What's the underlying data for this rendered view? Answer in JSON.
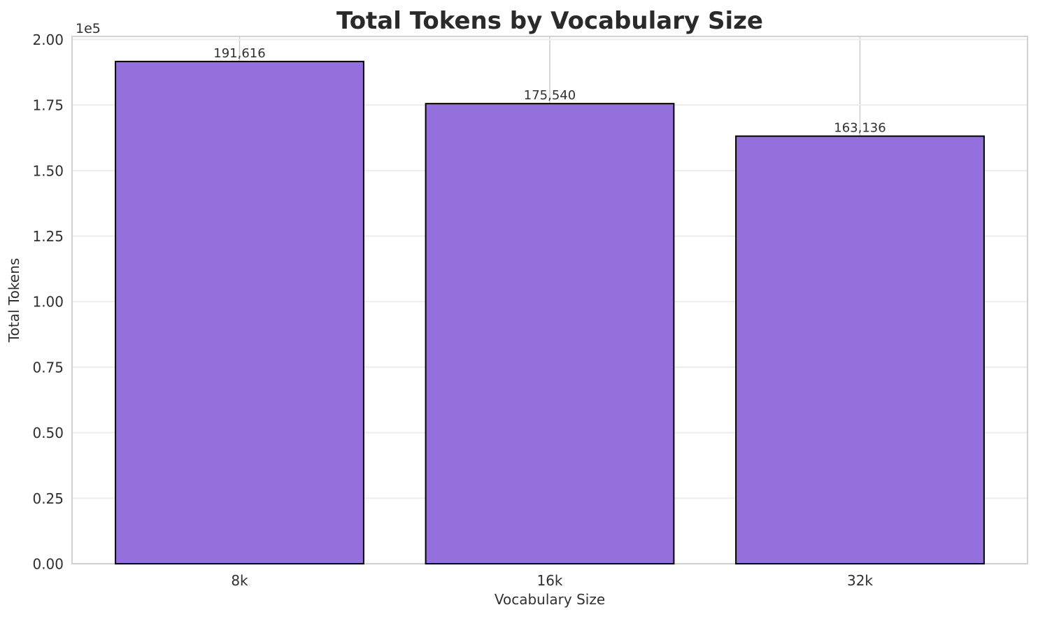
{
  "chart_data": {
    "type": "bar",
    "title": "Total Tokens by Vocabulary Size",
    "xlabel": "Vocabulary Size",
    "ylabel": "Total Tokens",
    "categories": [
      "8k",
      "16k",
      "32k"
    ],
    "values": [
      191616,
      175540,
      163136
    ],
    "value_labels": [
      "191,616",
      "175,540",
      "163,136"
    ],
    "ylim": [
      0,
      201197
    ],
    "yticks": [
      0,
      25000,
      50000,
      75000,
      100000,
      125000,
      150000,
      175000,
      200000
    ],
    "ytick_labels": [
      "0.00",
      "0.25",
      "0.50",
      "0.75",
      "1.00",
      "1.25",
      "1.50",
      "1.75",
      "2.00"
    ],
    "y_offset_text": "1e5",
    "grid": true,
    "legend": false,
    "bar_width_fraction": 0.8,
    "bar_color": "#9370db",
    "bar_edge_color": "#000000",
    "grid_color_h": "#ededed",
    "grid_color_v": "#c9c9c9",
    "spine_color": "#cdcdcd",
    "text_color": "#303030",
    "title_color": "#2a2a2a",
    "background": "#ffffff"
  }
}
